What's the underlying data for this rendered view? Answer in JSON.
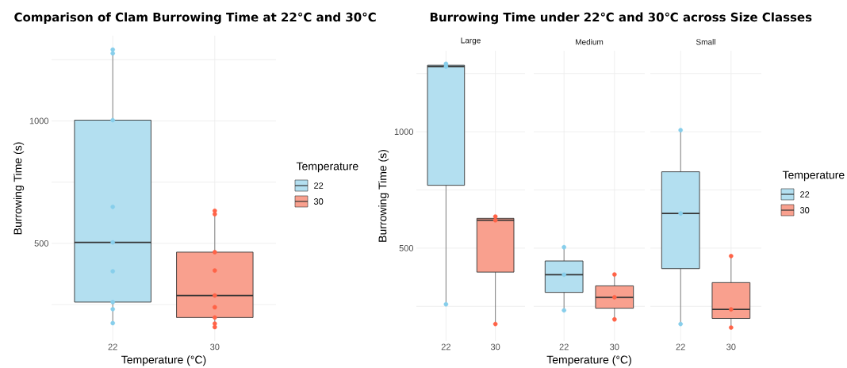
{
  "chart_data": [
    {
      "type": "box",
      "title": "Comparison of Clam Burrowing Time at 22°C and 30°C",
      "xlabel": "Temperature (°C)",
      "ylabel": "Burrowing Time (s)",
      "legend_title": "Temperature",
      "legend": "right",
      "grid": true,
      "categories": [
        "22",
        "30"
      ],
      "ylim": [
        101,
        1348
      ],
      "yticks": [
        {
          "value": 250,
          "label": null
        },
        500,
        {
          "value": 750,
          "label": null
        },
        1000,
        {
          "value": 1250,
          "label": null
        }
      ],
      "series": [
        {
          "name": "22",
          "color": "#b3dff0",
          "boxes": [
            {
              "low": 174,
              "q1": 260,
              "median": 504,
              "q3": 1003,
              "high": 1291
            },
            null
          ]
        },
        {
          "name": "30",
          "color": "#f9a08e",
          "boxes": [
            null,
            {
              "low": 158,
              "q1": 197,
              "median": 287,
              "q3": 464,
              "high": 633
            }
          ]
        },
        {
          "type": "scatter",
          "color": "#87ceeb",
          "marker": "circle",
          "x": [
            "22",
            "22",
            "22",
            "22",
            "22",
            "22",
            "22",
            "22",
            "22"
          ],
          "values": [
            1291,
            1276,
            1003,
            649,
            504,
            386,
            260,
            231,
            174
          ]
        },
        {
          "type": "scatter",
          "color": "#ff6347",
          "marker": "circle",
          "x": [
            "30",
            "30",
            "30",
            "30",
            "30",
            "30",
            "30",
            "30",
            "30"
          ],
          "values": [
            633,
            619,
            464,
            389,
            287,
            239,
            197,
            172,
            158
          ]
        }
      ]
    },
    {
      "type": "box",
      "title": "Burrowing Time under 22℃ and 30℃ across Size Classes",
      "subtitle": "Large",
      "ylabel": "Burrowing Time (s)",
      "grid": true,
      "categories": [
        "22",
        "30"
      ],
      "ylim": [
        101,
        1348
      ],
      "yticks": [
        {
          "value": 250,
          "label": null
        },
        500,
        {
          "value": 750,
          "label": null
        },
        1000,
        {
          "value": 1250,
          "label": null
        }
      ],
      "series": [
        {
          "color": "#b3dff0",
          "boxes": [
            {
              "low": 259,
              "q1": 770,
              "median": 1280,
              "q3": 1286,
              "high": 1292
            },
            null
          ]
        },
        {
          "color": "#f9a08e",
          "boxes": [
            null,
            {
              "low": 174,
              "q1": 397,
              "median": 620,
              "q3": 628,
              "high": 636
            }
          ]
        },
        {
          "type": "scatter",
          "color": "#87ceeb",
          "marker": "circle",
          "x": [
            "22",
            "22",
            "22"
          ],
          "values": [
            1292,
            1280,
            259
          ]
        },
        {
          "type": "scatter",
          "color": "#ff6347",
          "marker": "circle",
          "x": [
            "30",
            "30",
            "30"
          ],
          "values": [
            636,
            620,
            174
          ]
        }
      ]
    },
    {
      "type": "box",
      "subtitle": "Medium",
      "xlabel": "Temperature (°C)",
      "grid": true,
      "tick_labels": "x",
      "categories": [
        "22",
        "30"
      ],
      "ylim": [
        101,
        1348
      ],
      "yticks": [
        {
          "value": 250,
          "label": null
        },
        500,
        {
          "value": 750,
          "label": null
        },
        1000,
        {
          "value": 1250,
          "label": null
        }
      ],
      "series": [
        {
          "color": "#b3dff0",
          "boxes": [
            {
              "low": 233,
              "q1": 310,
              "median": 386,
              "q3": 445,
              "high": 504
            },
            null
          ]
        },
        {
          "color": "#f9a08e",
          "boxes": [
            null,
            {
              "low": 194,
              "q1": 242,
              "median": 289,
              "q3": 338,
              "high": 387
            }
          ]
        },
        {
          "type": "scatter",
          "color": "#87ceeb",
          "marker": "circle",
          "x": [
            "22",
            "22",
            "22"
          ],
          "values": [
            504,
            386,
            233
          ]
        },
        {
          "type": "scatter",
          "color": "#ff6347",
          "marker": "circle",
          "x": [
            "30",
            "30",
            "30"
          ],
          "values": [
            387,
            289,
            194
          ]
        }
      ]
    },
    {
      "type": "box",
      "subtitle": "Small",
      "legend_title": "Temperature",
      "legend": "right",
      "grid": true,
      "tick_labels": "x",
      "categories": [
        "22",
        "30"
      ],
      "ylim": [
        101,
        1348
      ],
      "yticks": [
        {
          "value": 250,
          "label": null
        },
        500,
        {
          "value": 750,
          "label": null
        },
        1000,
        {
          "value": 1250,
          "label": null
        }
      ],
      "series": [
        {
          "name": "22",
          "color": "#b3dff0",
          "boxes": [
            {
              "low": 174,
              "q1": 412,
              "median": 649,
              "q3": 828,
              "high": 1007
            },
            null
          ]
        },
        {
          "name": "30",
          "color": "#f9a08e",
          "boxes": [
            null,
            {
              "low": 159,
              "q1": 198,
              "median": 237,
              "q3": 352,
              "high": 466
            }
          ]
        },
        {
          "type": "scatter",
          "color": "#87ceeb",
          "marker": "circle",
          "x": [
            "22",
            "22",
            "22"
          ],
          "values": [
            1007,
            649,
            174
          ]
        },
        {
          "type": "scatter",
          "color": "#ff6347",
          "marker": "circle",
          "x": [
            "30",
            "30",
            "30"
          ],
          "values": [
            466,
            237,
            159
          ]
        }
      ]
    }
  ]
}
